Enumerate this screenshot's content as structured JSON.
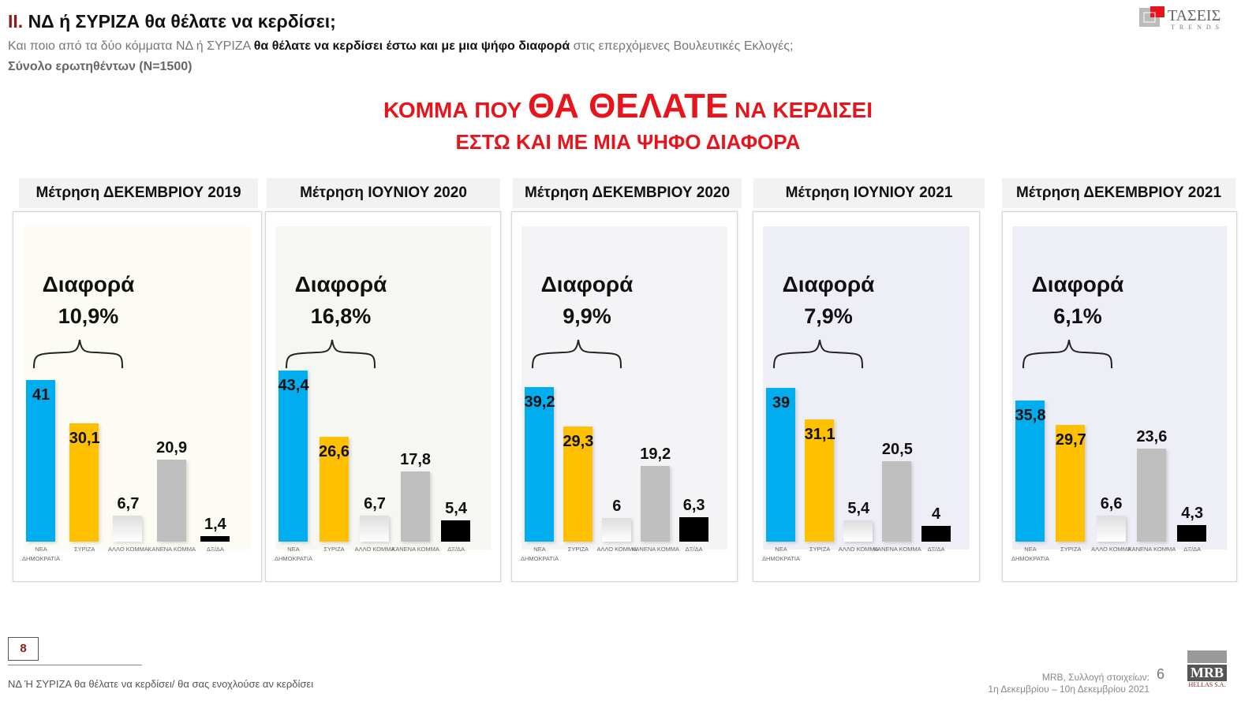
{
  "header": {
    "number": "II.",
    "title": "ΝΔ  ή ΣΥΡΙΖΑ θα θέλατε να κερδίσει;",
    "subtitle_pre": "Και ποιο από τα δύο κόμματα ΝΔ ή ΣΥΡΙΖΑ ",
    "subtitle_bold": "θα θέλατε να κερδίσει έστω και με μια ψήφο διαφορά",
    "subtitle_post": " στις επερχόμενες Βουλευτικές Εκλογές;",
    "base": "Σύνολο ερωτηθέντων (N=1500)"
  },
  "headline": {
    "pre": "ΚΟΜΜΑ ΠΟΥ ",
    "big": "ΘΑ ΘΕΛΑΤΕ",
    "post": " ΝΑ ΚΕΡΔΙΣΕΙ",
    "line2": "ΕΣΤΩ ΚΑΙ ΜΕ ΜΙΑ ΨΗΦΟ ΔΙΑΦΟΡΑ"
  },
  "logo": {
    "text": "ΤΑΣΕΙΣ",
    "sub": "TRENDS",
    "brand_color": "#e8141b"
  },
  "chart_data": {
    "type": "bar",
    "categories": [
      "ΝΕΑ ΔΗΜΟΚΡΑΤΙΑ",
      "ΣΥΡΙΖΑ",
      "ΑΛΛΟ ΚΟΜΜΑ",
      "ΚΑΝΕΝΑ ΚΟΜΜΑ",
      "ΔΞ/ΔΑ"
    ],
    "colors": [
      "#00aeef",
      "#ffc000",
      "#eeeeee",
      "#bfbfbf",
      "#000000"
    ],
    "diff_label": "Διαφορά",
    "panels": [
      {
        "title": "Μέτρηση ΔΕΚΕΜΒΡΙΟΥ 2019",
        "diff": "10,9%",
        "values": [
          41,
          30.1,
          6.7,
          20.9,
          1.4
        ],
        "labels": [
          "41",
          "30,1",
          "6,7",
          "20,9",
          "1,4"
        ]
      },
      {
        "title": "Μέτρηση ΙΟΥΝΙΟΥ 2020",
        "diff": "16,8%",
        "values": [
          43.4,
          26.6,
          6.7,
          17.8,
          5.4
        ],
        "labels": [
          "43,4",
          "26,6",
          "6,7",
          "17,8",
          "5,4"
        ]
      },
      {
        "title": "Μέτρηση ΔΕΚΕΜΒΡΙΟΥ 2020",
        "diff": "9,9%",
        "values": [
          39.2,
          29.3,
          6,
          19.2,
          6.3
        ],
        "labels": [
          "39,2",
          "29,3",
          "6",
          "19,2",
          "6,3"
        ]
      },
      {
        "title": "Μέτρηση ΙΟΥΝΙΟΥ 2021",
        "diff": "7,9%",
        "values": [
          39,
          31.1,
          5.4,
          20.5,
          4
        ],
        "labels": [
          "39",
          "31,1",
          "5,4",
          "20,5",
          "4"
        ]
      },
      {
        "title": "Μέτρηση ΔΕΚΕΜΒΡΙΟΥ 2021",
        "diff": "6,1%",
        "values": [
          35.8,
          29.7,
          6.6,
          23.6,
          4.3
        ],
        "labels": [
          "35,8",
          "29,7",
          "6,6",
          "23,6",
          "4,3"
        ]
      }
    ]
  },
  "footer": {
    "page_box": "8",
    "note": "ΝΔ Ή ΣΥΡΙΖΑ θα θέλατε να κερδίσει/ θα σας ενοχλούσε αν κερδίσει",
    "source1": "MRB, Συλλογή στοιχείων:",
    "source2": "1η Δεκεμβρίου –  10η Δεκεμβρίου 2021",
    "page": "6",
    "mrb": "MRB",
    "mrb_sub": "HELLAS S.A."
  }
}
